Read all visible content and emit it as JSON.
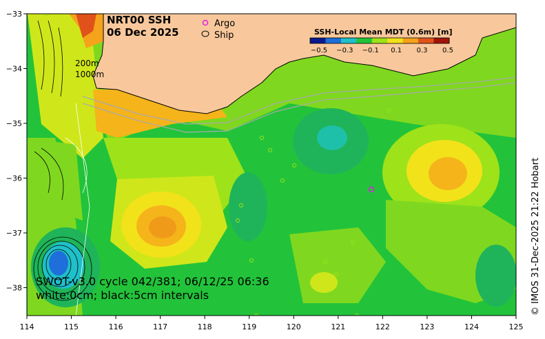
{
  "title": {
    "line1": "NRT00 SSH",
    "line2": "06 Dec 2025"
  },
  "legend": {
    "argo_label": "Argo",
    "ship_label": "Ship",
    "argo_color": "#e020e0",
    "ship_color": "#000000"
  },
  "depth_labels": {
    "a": "200m",
    "b": "1000m"
  },
  "colorbar": {
    "title": "SSH-Local Mean MDT (0.6m) [m]",
    "ticks": [
      "−0.5",
      "−0.3",
      "−0.1",
      "0.1",
      "0.3",
      "0.5"
    ],
    "colors": [
      "#0a1a8c",
      "#1e6fd9",
      "#1fc0c9",
      "#22c33a",
      "#9ee21a",
      "#f2e21a",
      "#f5a31a",
      "#e0521a",
      "#a0140a"
    ]
  },
  "annotation": {
    "line1": "SWOT-v3.0 cycle 042/381; 06/12/25 06:36",
    "line2": "white:0cm; black:5cm intervals"
  },
  "credit": "© IMOS 31-Dec-2025 21:22 Hobart",
  "axes": {
    "x_ticks": [
      "114",
      "115",
      "116",
      "117",
      "118",
      "119",
      "120",
      "121",
      "122",
      "123",
      "124",
      "125"
    ],
    "y_ticks": [
      "−33",
      "−34",
      "−35",
      "−36",
      "−37",
      "−38"
    ]
  },
  "colors": {
    "land": "#f8c89c",
    "background_field": "#22c33a"
  }
}
